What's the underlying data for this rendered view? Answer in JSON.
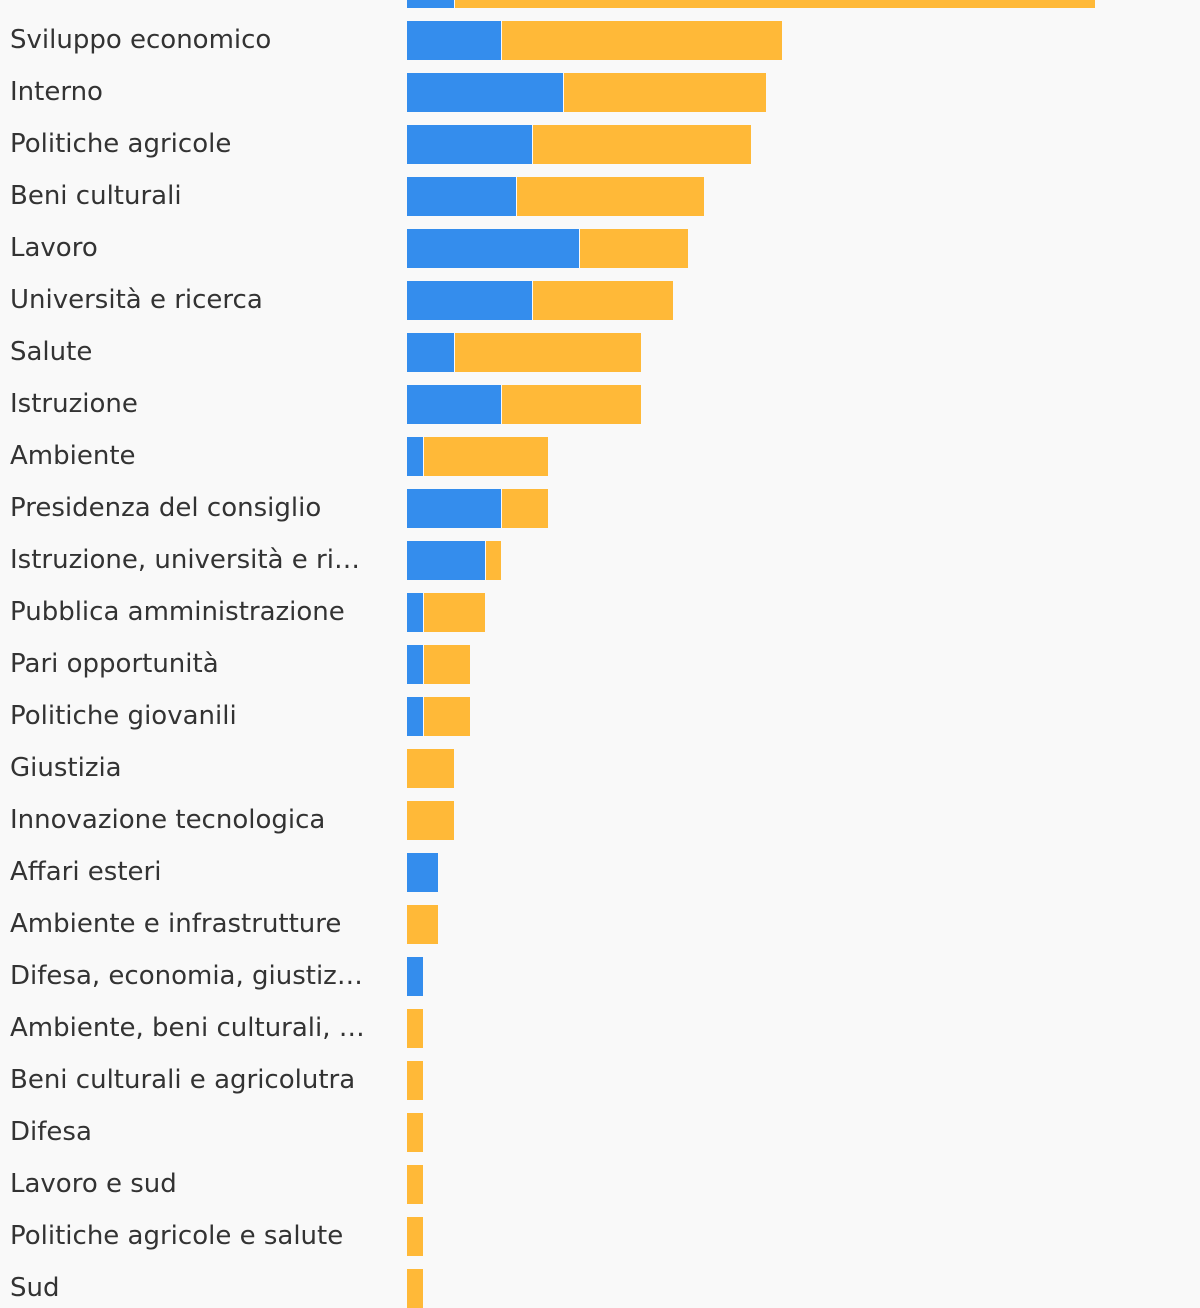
{
  "chart_data": {
    "type": "bar",
    "orientation": "horizontal",
    "stacked": true,
    "colors": {
      "series_1": "#348ded",
      "series_2": "#ffb938"
    },
    "categories": [
      "",
      "Sviluppo economico",
      "Interno",
      "Politiche agricole",
      "Beni culturali",
      "Lavoro",
      "Università e ricerca",
      "Salute",
      "Istruzione",
      "Ambiente",
      "Presidenza del consiglio",
      "Istruzione, università e ri…",
      "Pubblica amministrazione",
      "Pari opportunità",
      "Politiche giovanili",
      "Giustizia",
      "Innovazione tecnologica",
      "Affari esteri",
      "Ambiente e infrastrutture",
      "Difesa, economia, giustiz…",
      "Ambiente, beni culturali, …",
      "Beni culturali e agricolutra",
      "Difesa",
      "Lavoro e sud",
      "Politiche agricole e salute",
      "Sud"
    ],
    "series": [
      {
        "values": [
          3,
          6,
          10,
          8,
          7,
          11,
          8,
          3,
          6,
          1,
          6,
          5,
          1,
          1,
          1,
          0,
          0,
          2,
          0,
          1,
          0,
          0,
          0,
          0,
          0,
          0
        ]
      },
      {
        "values": [
          41,
          18,
          13,
          14,
          12,
          7,
          9,
          12,
          9,
          8,
          3,
          1,
          4,
          3,
          3,
          3,
          3,
          0,
          2,
          0,
          1,
          1,
          1,
          1,
          1,
          1
        ]
      }
    ],
    "grid": false,
    "legend": "none"
  }
}
